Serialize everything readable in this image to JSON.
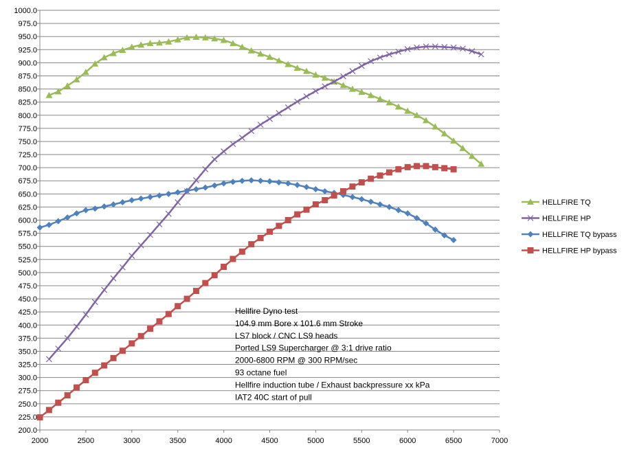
{
  "chart_data": {
    "type": "line",
    "xlim": [
      2000,
      7000
    ],
    "ylim": [
      200,
      1000
    ],
    "x_ticks": [
      "2000",
      "2500",
      "3000",
      "3500",
      "4000",
      "4500",
      "5000",
      "5500",
      "6000",
      "6500",
      "7000"
    ],
    "y_ticks": [
      "200.0",
      "225.0",
      "250.0",
      "275.0",
      "300.0",
      "325.0",
      "350.0",
      "375.0",
      "400.0",
      "425.0",
      "450.0",
      "475.0",
      "500.0",
      "525.0",
      "550.0",
      "575.0",
      "600.0",
      "625.0",
      "650.0",
      "675.0",
      "700.0",
      "725.0",
      "750.0",
      "775.0",
      "800.0",
      "825.0",
      "850.0",
      "875.0",
      "900.0",
      "925.0",
      "950.0",
      "975.0",
      "1000.0"
    ],
    "grid": "horizontal",
    "legend_position": "right",
    "series": [
      {
        "name": "HELLFIRE TQ",
        "color": "#9BBB59",
        "marker": "triangle",
        "x": [
          2100,
          2200,
          2300,
          2400,
          2500,
          2600,
          2700,
          2800,
          2900,
          3000,
          3100,
          3200,
          3300,
          3400,
          3500,
          3600,
          3700,
          3800,
          3900,
          4000,
          4100,
          4200,
          4300,
          4400,
          4500,
          4600,
          4700,
          4800,
          4900,
          5000,
          5100,
          5200,
          5300,
          5400,
          5500,
          5600,
          5700,
          5800,
          5900,
          6000,
          6100,
          6200,
          6300,
          6400,
          6500,
          6600,
          6700,
          6800
        ],
        "y": [
          838,
          845,
          856,
          868,
          882,
          898,
          910,
          918,
          924,
          930,
          934,
          937,
          938,
          940,
          944,
          948,
          949,
          948,
          946,
          943,
          937,
          930,
          923,
          917,
          911,
          904,
          897,
          890,
          884,
          877,
          871,
          864,
          857,
          850,
          844,
          838,
          831,
          824,
          816,
          808,
          800,
          790,
          778,
          765,
          751,
          737,
          722,
          707
        ]
      },
      {
        "name": "HELLFIRE HP",
        "color": "#8064A2",
        "marker": "x",
        "x": [
          2100,
          2200,
          2300,
          2400,
          2500,
          2600,
          2700,
          2800,
          2900,
          3000,
          3100,
          3200,
          3300,
          3400,
          3500,
          3600,
          3700,
          3800,
          3900,
          4000,
          4100,
          4200,
          4300,
          4400,
          4500,
          4600,
          4700,
          4800,
          4900,
          5000,
          5100,
          5200,
          5300,
          5400,
          5500,
          5600,
          5700,
          5800,
          5900,
          6000,
          6100,
          6200,
          6300,
          6400,
          6500,
          6600,
          6700,
          6800
        ],
        "y": [
          335,
          355,
          375,
          397,
          420,
          444,
          467,
          489,
          510,
          532,
          552,
          572,
          592,
          612,
          634,
          655,
          676,
          697,
          716,
          731,
          745,
          757,
          770,
          782,
          793,
          804,
          815,
          826,
          836,
          846,
          855,
          864,
          874,
          884,
          894,
          903,
          910,
          916,
          921,
          926,
          929,
          931,
          931,
          930,
          929,
          927,
          922,
          916
        ]
      },
      {
        "name": "HELLFIRE TQ bypass",
        "color": "#4F81BD",
        "marker": "diamond",
        "x": [
          2000,
          2100,
          2200,
          2300,
          2400,
          2500,
          2600,
          2700,
          2800,
          2900,
          3000,
          3100,
          3200,
          3300,
          3400,
          3500,
          3600,
          3700,
          3800,
          3900,
          4000,
          4100,
          4200,
          4300,
          4400,
          4500,
          4600,
          4700,
          4800,
          4900,
          5000,
          5100,
          5200,
          5300,
          5400,
          5500,
          5600,
          5700,
          5800,
          5900,
          6000,
          6100,
          6200,
          6300,
          6400,
          6500
        ],
        "y": [
          586,
          591,
          598,
          605,
          613,
          619,
          622,
          626,
          630,
          634,
          638,
          641,
          644,
          647,
          650,
          653,
          656,
          659,
          662,
          666,
          670,
          673,
          675,
          676,
          675,
          674,
          672,
          670,
          667,
          663,
          659,
          655,
          652,
          648,
          644,
          640,
          635,
          630,
          625,
          619,
          613,
          604,
          594,
          582,
          571,
          562
        ]
      },
      {
        "name": "HELLFIRE HP bypass",
        "color": "#C0504D",
        "marker": "square",
        "x": [
          2000,
          2100,
          2200,
          2300,
          2400,
          2500,
          2600,
          2700,
          2800,
          2900,
          3000,
          3100,
          3200,
          3300,
          3400,
          3500,
          3600,
          3700,
          3800,
          3900,
          4000,
          4100,
          4200,
          4300,
          4400,
          4500,
          4600,
          4700,
          4800,
          4900,
          5000,
          5100,
          5200,
          5300,
          5400,
          5500,
          5600,
          5700,
          5800,
          5900,
          6000,
          6100,
          6200,
          6300,
          6400,
          6500
        ],
        "y": [
          224,
          238,
          252,
          266,
          281,
          295,
          309,
          323,
          337,
          351,
          365,
          379,
          393,
          407,
          421,
          436,
          450,
          465,
          480,
          495,
          511,
          526,
          540,
          554,
          566,
          578,
          589,
          600,
          611,
          620,
          630,
          638,
          647,
          655,
          664,
          672,
          679,
          685,
          691,
          697,
          701,
          703,
          703,
          701,
          699,
          697
        ]
      }
    ]
  },
  "annotation": {
    "lines": [
      "Hellfire Dyno test",
      "104.9  mm Bore x 101.6  mm Stroke",
      "LS7 block / CNC LS9 heads",
      "Ported LS9 Supercharger @ 3:1 drive ratio",
      "2000-6800  RPM @ 300  RPM/sec",
      "93 octane fuel",
      "Hellfire induction tube / Exhaust backpressure xx kPa",
      "IAT2 40C start of pull"
    ]
  }
}
